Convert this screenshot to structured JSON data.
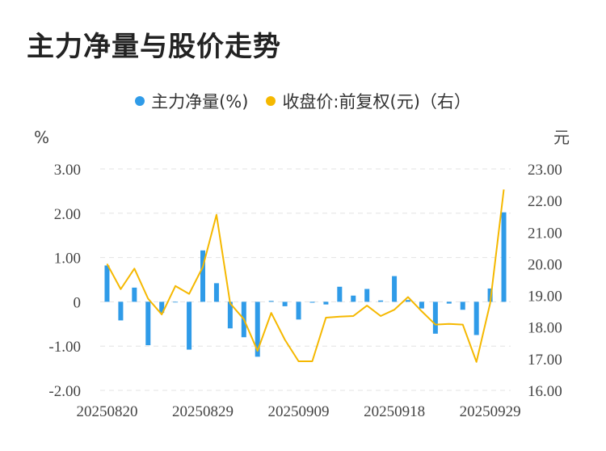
{
  "title": "主力净量与股价走势",
  "legend": {
    "series1": "主力净量(%)",
    "series2": "收盘价:前复权(元)（右）"
  },
  "colors": {
    "bar": "#2f9be8",
    "line": "#f5b800",
    "grid": "#e3e3e3"
  },
  "chart_data": {
    "type": "bar+line",
    "title": "主力净量与股价走势",
    "left_unit": "%",
    "right_unit": "元",
    "y_left": {
      "min": -2,
      "max": 3,
      "ticks": [
        3,
        2,
        1,
        0,
        -1,
        -2
      ],
      "tick_labels": [
        "3.00",
        "2.00",
        "1.00",
        "0",
        "-1.00",
        "-2.00"
      ]
    },
    "y_right": {
      "min": 16,
      "max": 23,
      "ticks": [
        23,
        22,
        21,
        20,
        19,
        18,
        17,
        16
      ],
      "tick_labels": [
        "23.00",
        "22.00",
        "21.00",
        "20.00",
        "19.00",
        "18.00",
        "17.00",
        "16.00"
      ]
    },
    "x_tick_labels": [
      "20250820",
      "20250829",
      "20250909",
      "20250918",
      "20250929"
    ],
    "x_tick_indices": [
      0,
      7,
      14,
      21,
      28
    ],
    "categories": [
      "20250820",
      "20250821",
      "20250822",
      "20250825",
      "20250826",
      "20250827",
      "20250828",
      "20250829",
      "20250901",
      "20250902",
      "20250903",
      "20250904",
      "20250905",
      "20250908",
      "20250909",
      "20250910",
      "20250911",
      "20250912",
      "20250915",
      "20250916",
      "20250917",
      "20250918",
      "20250919",
      "20250922",
      "20250923",
      "20250924",
      "20250925",
      "20250926",
      "20250929",
      "20250930"
    ],
    "series": [
      {
        "name": "主力净量(%)",
        "type": "bar",
        "axis": "left",
        "values": [
          0.82,
          -0.42,
          0.32,
          -0.98,
          -0.25,
          0.0,
          -1.08,
          1.16,
          0.42,
          -0.6,
          -0.8,
          -1.24,
          0.02,
          -0.1,
          -0.4,
          -0.02,
          -0.06,
          0.34,
          0.14,
          0.29,
          0.03,
          0.58,
          0.04,
          -0.15,
          -0.72,
          -0.04,
          -0.18,
          -0.75,
          0.3,
          2.02
        ]
      },
      {
        "name": "收盘价:前复权(元)（右）",
        "type": "line",
        "axis": "right",
        "values": [
          20.0,
          19.2,
          19.85,
          18.9,
          18.4,
          19.3,
          19.05,
          19.9,
          21.55,
          18.75,
          18.25,
          17.25,
          18.45,
          17.6,
          16.92,
          16.92,
          18.3,
          18.33,
          18.35,
          18.68,
          18.35,
          18.55,
          18.95,
          18.5,
          18.08,
          18.1,
          18.08,
          16.9,
          18.75,
          22.35
        ]
      }
    ]
  }
}
